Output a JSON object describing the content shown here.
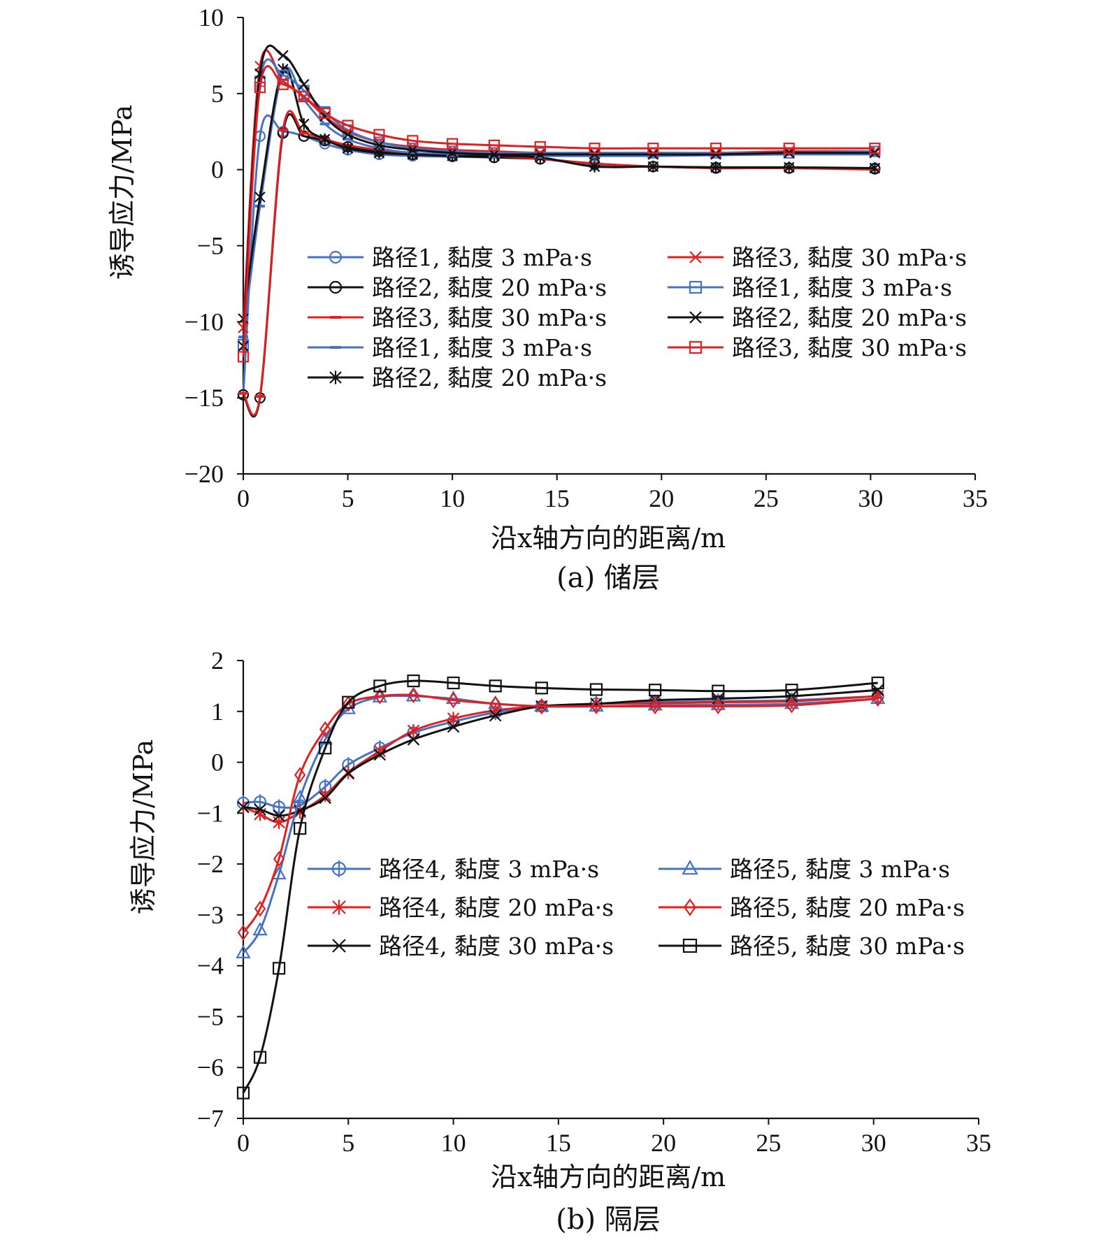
{
  "chart_data": [
    {
      "type": "line",
      "caption": "(a) 储层",
      "xlabel": "沿x轴方向的距离/m",
      "ylabel": "诱导应力/MPa",
      "xlim": [
        0,
        35
      ],
      "ylim": [
        -20,
        10
      ],
      "xticks": [
        0,
        5,
        10,
        15,
        20,
        25,
        30,
        35
      ],
      "yticks": [
        10,
        5,
        0,
        -5,
        -10,
        -15,
        -20
      ],
      "ytick_labels": [
        "10",
        "5",
        "0",
        "−5",
        "−10",
        "−15",
        "−20"
      ],
      "legend_position": "center",
      "series": [
        {
          "name": "路径1, 黏度 3 mPa·s",
          "color": "#4472c4",
          "marker": "circle",
          "x": [
            0,
            0.8,
            1.9,
            2.9,
            3.9,
            5,
            6.5,
            8.1,
            10,
            12,
            14.2,
            16.8,
            19.6,
            22.6,
            26.1,
            30.2
          ],
          "y": [
            -14.8,
            2.2,
            2.5,
            2.2,
            1.7,
            1.3,
            1.0,
            0.9,
            0.85,
            0.8,
            0.7,
            0.3,
            0.2,
            0.15,
            0.1,
            0.1
          ]
        },
        {
          "name": "路径2, 黏度 20 mPa·s",
          "color": "#111111",
          "marker": "circle",
          "x": [
            0,
            0.8,
            1.9,
            2.9,
            3.9,
            5,
            6.5,
            8.1,
            10,
            12,
            14.2,
            16.8,
            19.6,
            22.6,
            26.1,
            30.2
          ],
          "y": [
            -14.8,
            -15.0,
            2.4,
            2.2,
            1.9,
            1.5,
            1.2,
            1.0,
            0.9,
            0.8,
            0.7,
            0.4,
            0.2,
            0.1,
            0.1,
            0.05
          ]
        },
        {
          "name": "路径3, 黏度 30 mPa·s",
          "color": "#e02020",
          "marker": "dash",
          "x": [
            0,
            0.8,
            1.9,
            2.9,
            3.9,
            5,
            6.5,
            8.1,
            10,
            12,
            14.2,
            16.8,
            19.6,
            22.6,
            26.1,
            30.2
          ],
          "y": [
            -14.7,
            -14.9,
            2.6,
            2.4,
            2.0,
            1.6,
            1.3,
            1.1,
            1.0,
            0.9,
            0.7,
            0.4,
            0.2,
            0.1,
            0.1,
            0.0
          ]
        },
        {
          "name": "路径1, 黏度 3 mPa·s",
          "color": "#4472c4",
          "marker": "dash",
          "x": [
            0,
            0.8,
            1.9,
            2.9,
            3.9,
            5,
            6.5,
            8.1,
            10,
            12,
            14.2,
            16.8,
            19.6,
            22.6,
            26.1,
            30.2
          ],
          "y": [
            -11.0,
            -2.4,
            6.4,
            4.6,
            3.0,
            2.0,
            1.4,
            1.1,
            1.0,
            0.95,
            0.9,
            0.9,
            0.9,
            0.95,
            1.0,
            1.0
          ]
        },
        {
          "name": "路径2, 黏度 20 mPa·s",
          "color": "#111111",
          "marker": "asterisk",
          "x": [
            0,
            0.8,
            1.9,
            2.9,
            3.9,
            5,
            6.5,
            8.1,
            10,
            12,
            14.2,
            16.8,
            19.6,
            22.6,
            26.1,
            30.2
          ],
          "y": [
            -9.8,
            -1.8,
            6.6,
            3.0,
            2.0,
            1.4,
            1.1,
            1.0,
            0.9,
            0.9,
            0.8,
            0.2,
            0.2,
            0.15,
            0.15,
            0.1
          ]
        },
        {
          "name": "路径3, 黏度 30 mPa·s",
          "color": "#e02020",
          "marker": "x",
          "x": [
            0,
            0.8,
            1.9,
            2.9,
            3.9,
            5,
            6.5,
            8.1,
            10,
            12,
            14.2,
            16.8,
            19.6,
            22.6,
            26.1,
            30.2
          ],
          "y": [
            -10.4,
            6.8,
            5.8,
            4.8,
            3.5,
            2.5,
            1.8,
            1.5,
            1.3,
            1.2,
            1.1,
            1.1,
            1.1,
            1.1,
            1.2,
            1.2
          ]
        },
        {
          "name": "路径1, 黏度 3 mPa·s",
          "color": "#4472c4",
          "marker": "square",
          "x": [
            0,
            0.8,
            1.9,
            2.9,
            3.9,
            5,
            6.5,
            8.1,
            10,
            12,
            14.2,
            16.8,
            19.6,
            22.6,
            26.1,
            30.2
          ],
          "y": [
            -11.5,
            5.8,
            6.2,
            5.2,
            3.8,
            2.6,
            1.8,
            1.4,
            1.2,
            1.1,
            1.1,
            1.1,
            1.1,
            1.1,
            1.1,
            1.2
          ]
        },
        {
          "name": "路径2, 黏度 20 mPa·s",
          "color": "#111111",
          "marker": "x",
          "x": [
            0,
            0.8,
            1.9,
            2.9,
            3.9,
            5,
            6.5,
            8.1,
            10,
            12,
            14.2,
            16.8,
            19.6,
            22.6,
            26.1,
            30.2
          ],
          "y": [
            -11.6,
            6.3,
            7.5,
            5.6,
            3.5,
            2.3,
            1.6,
            1.3,
            1.1,
            1.0,
            1.0,
            1.0,
            1.0,
            1.0,
            1.1,
            1.1
          ]
        },
        {
          "name": "路径3, 黏度 30 mPa·s",
          "color": "#e02020",
          "marker": "square",
          "x": [
            0,
            0.8,
            1.9,
            2.9,
            3.9,
            5,
            6.5,
            8.1,
            10,
            12,
            14.2,
            16.8,
            19.6,
            22.6,
            26.1,
            30.2
          ],
          "y": [
            -12.3,
            5.4,
            5.6,
            4.8,
            3.7,
            2.9,
            2.3,
            1.9,
            1.7,
            1.6,
            1.5,
            1.4,
            1.4,
            1.4,
            1.4,
            1.4
          ]
        }
      ]
    },
    {
      "type": "line",
      "caption": "(b) 隔层",
      "xlabel": "沿x轴方向的距离/m",
      "ylabel": "诱导应力/MPa",
      "xlim": [
        0,
        35
      ],
      "ylim": [
        -7,
        2
      ],
      "xticks": [
        0,
        5,
        10,
        15,
        20,
        25,
        30,
        35
      ],
      "yticks": [
        2,
        1,
        0,
        -1,
        -2,
        -3,
        -4,
        -5,
        -6,
        -7
      ],
      "ytick_labels": [
        "2",
        "1",
        "0",
        "−1",
        "−2",
        "−3",
        "−4",
        "−5",
        "−6",
        "−7"
      ],
      "legend_position": "lower-right",
      "series": [
        {
          "name": "路径4, 黏度 3 mPa·s",
          "color": "#4472c4",
          "marker": "circle-bar",
          "x": [
            0,
            0.8,
            1.7,
            2.7,
            3.9,
            5,
            6.5,
            8.1,
            10,
            12,
            14.2,
            16.8,
            19.6,
            22.6,
            26.1,
            30.2
          ],
          "y": [
            -0.8,
            -0.78,
            -0.88,
            -0.85,
            -0.48,
            -0.05,
            0.28,
            0.58,
            0.8,
            0.98,
            1.1,
            1.15,
            1.18,
            1.2,
            1.22,
            1.3
          ]
        },
        {
          "name": "路径4, 黏度 20 mPa·s",
          "color": "#e02020",
          "marker": "asterisk",
          "x": [
            0,
            0.8,
            1.7,
            2.7,
            3.9,
            5,
            6.5,
            8.1,
            10,
            12,
            14.2,
            16.8,
            19.6,
            22.6,
            26.1,
            30.2
          ],
          "y": [
            -0.88,
            -1.02,
            -1.18,
            -0.98,
            -0.65,
            -0.2,
            0.22,
            0.62,
            0.86,
            1.02,
            1.1,
            1.15,
            1.16,
            1.18,
            1.2,
            1.3
          ]
        },
        {
          "name": "路径4, 黏度 30 mPa·s",
          "color": "#111111",
          "marker": "x",
          "x": [
            0,
            0.8,
            1.7,
            2.7,
            3.9,
            5,
            6.5,
            8.1,
            10,
            12,
            14.2,
            16.8,
            19.6,
            22.6,
            26.1,
            30.2
          ],
          "y": [
            -0.88,
            -0.93,
            -1.05,
            -0.95,
            -0.7,
            -0.22,
            0.15,
            0.45,
            0.7,
            0.92,
            1.1,
            1.15,
            1.22,
            1.25,
            1.3,
            1.42
          ]
        },
        {
          "name": "路径5, 黏度 3 mPa·s",
          "color": "#4472c4",
          "marker": "triangle",
          "x": [
            0,
            0.8,
            1.7,
            2.7,
            3.9,
            5,
            6.5,
            8.1,
            10,
            12,
            14.2,
            16.8,
            19.6,
            22.6,
            26.1,
            30.2
          ],
          "y": [
            -3.75,
            -3.3,
            -2.2,
            -0.7,
            0.45,
            1.05,
            1.28,
            1.3,
            1.25,
            1.15,
            1.1,
            1.1,
            1.12,
            1.13,
            1.15,
            1.25
          ]
        },
        {
          "name": "路径5, 黏度 20 mPa·s",
          "color": "#e02020",
          "marker": "diamond",
          "x": [
            0,
            0.8,
            1.7,
            2.7,
            3.9,
            5,
            6.5,
            8.1,
            10,
            12,
            14.2,
            16.8,
            19.6,
            22.6,
            26.1,
            30.2
          ],
          "y": [
            -3.35,
            -2.88,
            -1.9,
            -0.25,
            0.65,
            1.15,
            1.3,
            1.32,
            1.22,
            1.15,
            1.1,
            1.1,
            1.1,
            1.1,
            1.12,
            1.25
          ]
        },
        {
          "name": "路径5, 黏度 30 mPa·s",
          "color": "#111111",
          "marker": "square",
          "x": [
            0,
            0.8,
            1.7,
            2.7,
            3.9,
            5,
            6.5,
            8.1,
            10,
            12,
            14.2,
            16.8,
            19.6,
            22.6,
            26.1,
            30.2
          ],
          "y": [
            -6.5,
            -5.8,
            -4.05,
            -1.3,
            0.28,
            1.18,
            1.5,
            1.6,
            1.56,
            1.5,
            1.46,
            1.43,
            1.42,
            1.4,
            1.42,
            1.56
          ]
        }
      ]
    }
  ]
}
